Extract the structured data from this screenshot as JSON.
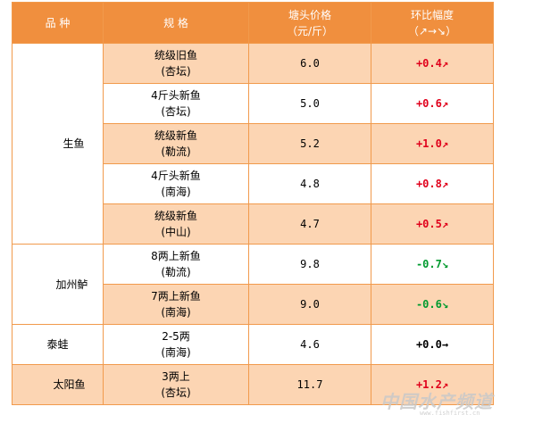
{
  "table": {
    "headers": {
      "category": "品  种",
      "spec": "规  格",
      "price_line1": "塘头价格",
      "price_line2": "（元/斤）",
      "change_line1": "环比幅度",
      "change_line2": "（↗→↘）"
    },
    "rows": [
      {
        "category": "生鱼",
        "spec_line1": "统级旧鱼",
        "spec_line2": "(杏坛)",
        "price": "6.0",
        "change": "+0.4↗",
        "trend": "up"
      },
      {
        "category": "",
        "spec_line1": "4斤头新鱼",
        "spec_line2": "(杏坛)",
        "price": "5.0",
        "change": "+0.6↗",
        "trend": "up"
      },
      {
        "category": "",
        "spec_line1": "统级新鱼",
        "spec_line2": "(勒流)",
        "price": "5.2",
        "change": "+1.0↗",
        "trend": "up"
      },
      {
        "category": "",
        "spec_line1": "4斤头新鱼",
        "spec_line2": "(南海)",
        "price": "4.8",
        "change": "+0.8↗",
        "trend": "up"
      },
      {
        "category": "",
        "spec_line1": "统级新鱼",
        "spec_line2": "(中山)",
        "price": "4.7",
        "change": "+0.5↗",
        "trend": "up"
      },
      {
        "category": "加州鲈",
        "spec_line1": "8两上新鱼",
        "spec_line2": "(勒流)",
        "price": "9.8",
        "change": "-0.7↘",
        "trend": "down"
      },
      {
        "category": "",
        "spec_line1": "7两上新鱼",
        "spec_line2": "(南海)",
        "price": "9.0",
        "change": "-0.6↘",
        "trend": "down"
      },
      {
        "category": "泰蛙",
        "spec_line1": "2-5两",
        "spec_line2": "(南海)",
        "price": "4.6",
        "change": "+0.0→",
        "trend": "flat"
      },
      {
        "category": "太阳鱼",
        "spec_line1": "3两上",
        "spec_line2": "(杏坛)",
        "price": "11.7",
        "change": "+1.2↗",
        "trend": "up"
      }
    ]
  },
  "watermark": {
    "text": "中国水产频道",
    "url": "www.fishfirst.cn"
  },
  "colors": {
    "header_bg": "#f08f3e",
    "row_shade": "#fcd5b3",
    "border": "#f19a4c",
    "up": "#e0001b",
    "down": "#009a2e"
  }
}
